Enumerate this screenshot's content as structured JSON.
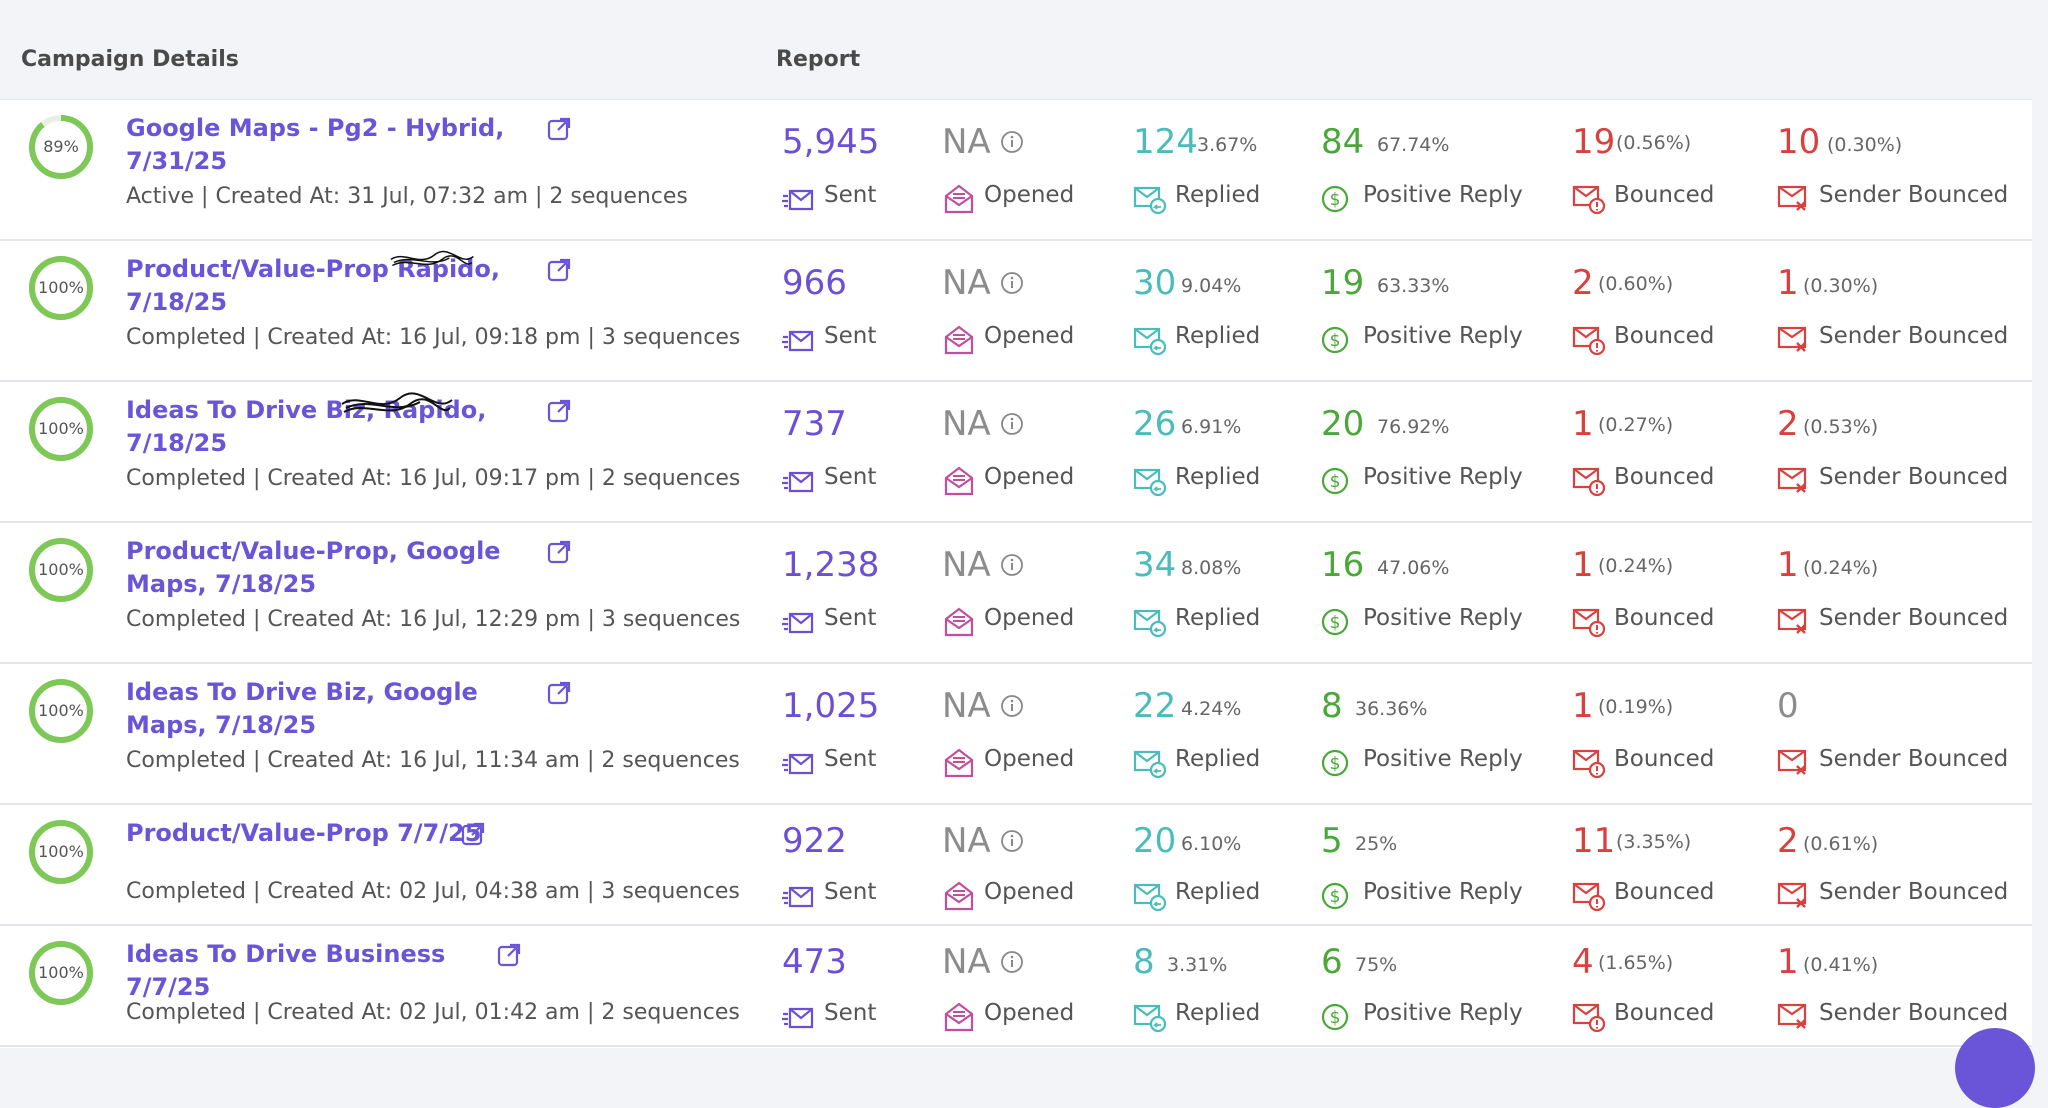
{
  "header": {
    "campaign_col": "Campaign Details",
    "report_col": "Report"
  },
  "labels": {
    "sent": "Sent",
    "opened": "Opened",
    "replied": "Replied",
    "positive": "Positive Reply",
    "bounced": "Bounced",
    "sender_bounced": "Sender Bounced",
    "na": "NA"
  },
  "colors": {
    "accent": "#6a55d8",
    "ring": "#7dc857",
    "teal": "#4bbcbc",
    "green": "#4aa838",
    "red": "#d9413e"
  },
  "rows": [
    {
      "progress": "89%",
      "progress_value": 0.89,
      "name": "Google Maps - Pg2 - Hybrid, 7/31/25",
      "meta": "Active | Created At: 31 Jul, 07:32 am | 2 sequences",
      "sent": "5,945",
      "opened": "NA",
      "replied": "124",
      "replied_pct": "3.67%",
      "positive": "84",
      "positive_pct": "67.74%",
      "bounced": "19",
      "bounced_pct": "(0.56%)",
      "sender_bounced": "10",
      "sender_bounced_pct": "(0.30%)"
    },
    {
      "progress": "100%",
      "progress_value": 1.0,
      "name": "Product/Value-Prop Rapido, 7/18/25",
      "meta": "Completed | Created At: 16 Jul, 09:18 pm | 3 sequences",
      "sent": "966",
      "opened": "NA",
      "replied": "30",
      "replied_pct": "9.04%",
      "positive": "19",
      "positive_pct": "63.33%",
      "bounced": "2",
      "bounced_pct": "(0.60%)",
      "sender_bounced": "1",
      "sender_bounced_pct": "(0.30%)"
    },
    {
      "progress": "100%",
      "progress_value": 1.0,
      "name": "Ideas To Drive Biz, Rapido, 7/18/25",
      "meta": "Completed | Created At: 16 Jul, 09:17 pm | 2 sequences",
      "sent": "737",
      "opened": "NA",
      "replied": "26",
      "replied_pct": "6.91%",
      "positive": "20",
      "positive_pct": "76.92%",
      "bounced": "1",
      "bounced_pct": "(0.27%)",
      "sender_bounced": "2",
      "sender_bounced_pct": "(0.53%)"
    },
    {
      "progress": "100%",
      "progress_value": 1.0,
      "name": "Product/Value-Prop, Google Maps, 7/18/25",
      "meta": "Completed | Created At: 16 Jul, 12:29 pm | 3 sequences",
      "sent": "1,238",
      "opened": "NA",
      "replied": "34",
      "replied_pct": "8.08%",
      "positive": "16",
      "positive_pct": "47.06%",
      "bounced": "1",
      "bounced_pct": "(0.24%)",
      "sender_bounced": "1",
      "sender_bounced_pct": "(0.24%)"
    },
    {
      "progress": "100%",
      "progress_value": 1.0,
      "name": "Ideas To Drive Biz, Google Maps, 7/18/25",
      "meta": "Completed | Created At: 16 Jul, 11:34 am | 2 sequences",
      "sent": "1,025",
      "opened": "NA",
      "replied": "22",
      "replied_pct": "4.24%",
      "positive": "8",
      "positive_pct": "36.36%",
      "bounced": "1",
      "bounced_pct": "(0.19%)",
      "sender_bounced": "0",
      "sender_bounced_pct": ""
    },
    {
      "progress": "100%",
      "progress_value": 1.0,
      "name": "Product/Value-Prop 7/7/25",
      "meta": "Completed | Created At: 02 Jul, 04:38 am | 3 sequences",
      "sent": "922",
      "opened": "NA",
      "replied": "20",
      "replied_pct": "6.10%",
      "positive": "5",
      "positive_pct": "25%",
      "bounced": "11",
      "bounced_pct": "(3.35%)",
      "sender_bounced": "2",
      "sender_bounced_pct": "(0.61%)"
    },
    {
      "progress": "100%",
      "progress_value": 1.0,
      "name": "Ideas To Drive Business 7/7/25",
      "meta": "Completed | Created At: 02 Jul, 01:42 am | 2 sequences",
      "sent": "473",
      "opened": "NA",
      "replied": "8",
      "replied_pct": "3.31%",
      "positive": "6",
      "positive_pct": "75%",
      "bounced": "4",
      "bounced_pct": "(1.65%)",
      "sender_bounced": "1",
      "sender_bounced_pct": "(0.41%)"
    }
  ]
}
